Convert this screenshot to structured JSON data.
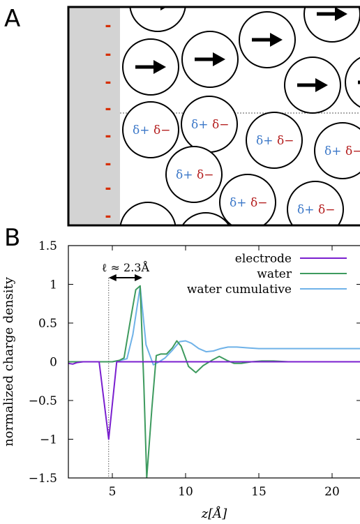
{
  "panels": {
    "a_label": "A",
    "b_label": "B"
  },
  "schematic": {
    "electrode_charge": "-",
    "dipole_pos": "δ+",
    "dipole_neg": "δ−",
    "colors": {
      "electrode_fill": "#d3d3d3",
      "negative_charge": "#d62e00",
      "dipole_pos": "#3c78c8",
      "dipole_neg": "#b41e1e"
    }
  },
  "chart_data": {
    "type": "line",
    "xlabel": "z[Å]",
    "ylabel": "normalized charge density",
    "xlim": [
      2,
      22
    ],
    "ylim": [
      -1.5,
      1.5
    ],
    "xticks": [
      5,
      10,
      15,
      20
    ],
    "yticks": [
      -1.5,
      -1,
      -0.5,
      0,
      0.5,
      1,
      1.5
    ],
    "ytick_labels": [
      "−1.5",
      "−1",
      "−0.5",
      "0",
      "0.5",
      "1",
      "1.5"
    ],
    "grid": false,
    "legend_position": "top-right",
    "annotation": {
      "text": "ℓ ≈ 2.3Å",
      "x_start": 4.75,
      "x_end": 7.05,
      "y": 1.05
    },
    "series": [
      {
        "name": "electrode",
        "color": "#7a1fcf",
        "x": [
          2,
          2.3,
          2.6,
          3,
          4,
          4.1,
          4.75,
          5.3,
          6,
          10,
          15,
          20,
          22
        ],
        "y": [
          -0.02,
          -0.03,
          -0.01,
          0,
          0,
          0,
          -1.0,
          0,
          0,
          0,
          0,
          0,
          0
        ]
      },
      {
        "name": "water",
        "color": "#3d9a5e",
        "x": [
          2,
          2.5,
          3,
          4,
          5,
          5.5,
          5.8,
          6.2,
          6.6,
          6.9,
          7.15,
          7.35,
          7.7,
          8.0,
          8.3,
          8.7,
          9.1,
          9.4,
          9.7,
          10.2,
          10.7,
          11.2,
          11.8,
          12.3,
          12.8,
          13.3,
          13.8,
          14.5,
          15.2,
          16,
          17,
          18,
          19,
          20,
          21,
          22
        ],
        "y": [
          0,
          0,
          0,
          0,
          0,
          0.02,
          0.05,
          0.5,
          0.93,
          0.98,
          -0.3,
          -1.5,
          -0.6,
          0.08,
          0.1,
          0.1,
          0.18,
          0.27,
          0.2,
          -0.06,
          -0.14,
          -0.05,
          0.02,
          0.07,
          0.02,
          -0.02,
          -0.02,
          0,
          0.01,
          0.01,
          0,
          0,
          0,
          0,
          0,
          0
        ]
      },
      {
        "name": "water cumulative",
        "color": "#6fb2e8",
        "x": [
          2,
          3,
          4,
          5,
          5.6,
          6.0,
          6.4,
          6.9,
          7.1,
          7.3,
          7.8,
          8.2,
          8.6,
          9.1,
          9.6,
          10.0,
          10.4,
          10.9,
          11.4,
          11.9,
          12.4,
          12.9,
          13.5,
          14.2,
          15.0,
          16,
          17,
          18,
          19,
          20,
          21,
          22
        ],
        "y": [
          0,
          0,
          0,
          0,
          0.02,
          0.04,
          0.35,
          0.97,
          0.6,
          0.22,
          -0.04,
          0.0,
          0.05,
          0.15,
          0.26,
          0.27,
          0.24,
          0.17,
          0.13,
          0.14,
          0.17,
          0.19,
          0.19,
          0.18,
          0.17,
          0.17,
          0.17,
          0.17,
          0.17,
          0.17,
          0.17,
          0.17
        ]
      }
    ]
  }
}
